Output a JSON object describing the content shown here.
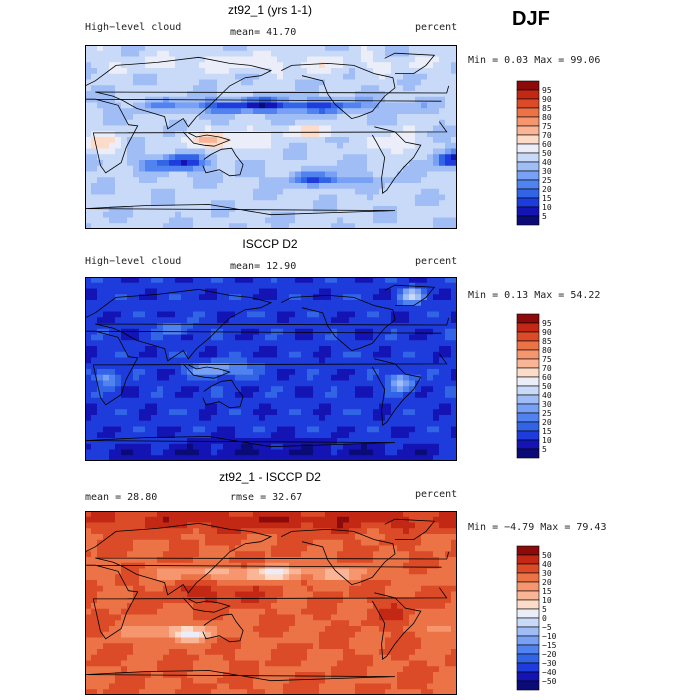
{
  "season": "DJF",
  "panels": [
    {
      "title": "zt92_1 (yrs 1-1)",
      "left_label": "High−level cloud",
      "center_label": "mean=  41.70",
      "right_label": "percent",
      "minmax_label": "Min =   0.03 Max =  99.06"
    },
    {
      "title": "ISCCP D2",
      "left_label": "High−level cloud",
      "center_label": "mean=  12.90",
      "right_label": "percent",
      "minmax_label": "Min =   0.13 Max =  54.22"
    },
    {
      "title": "zt92_1 - ISCCP D2",
      "left_label": "mean =  28.80",
      "center_label": "rmse =  32.67",
      "right_label": "percent",
      "minmax_label": "Min =  −4.79 Max =  79.43"
    }
  ],
  "chart_data": [
    {
      "type": "heatmap",
      "title": "zt92_1 (yrs 1-1)",
      "variable": "High-level cloud",
      "units": "percent",
      "mean": 41.7,
      "min": 0.03,
      "max": 99.06,
      "colorbar_levels": [
        5,
        10,
        15,
        20,
        25,
        30,
        40,
        50,
        60,
        70,
        75,
        80,
        85,
        90,
        95
      ],
      "colorbar_colors": [
        "#0b0b78",
        "#1414b4",
        "#1e3cdc",
        "#3264e6",
        "#5082f0",
        "#78a0f5",
        "#a0bef5",
        "#c8daf8",
        "#ebeef8",
        "#fcdcc8",
        "#fab496",
        "#f5966e",
        "#eb7346",
        "#dc4b28",
        "#c32814",
        "#8c0a0a"
      ]
    },
    {
      "type": "heatmap",
      "title": "ISCCP D2",
      "variable": "High-level cloud",
      "units": "percent",
      "mean": 12.9,
      "min": 0.13,
      "max": 54.22,
      "colorbar_levels": [
        5,
        10,
        15,
        20,
        25,
        30,
        40,
        50,
        60,
        70,
        75,
        80,
        85,
        90,
        95
      ],
      "colorbar_colors": [
        "#0b0b78",
        "#1414b4",
        "#1e3cdc",
        "#3264e6",
        "#5082f0",
        "#78a0f5",
        "#a0bef5",
        "#c8daf8",
        "#ebeef8",
        "#fcdcc8",
        "#fab496",
        "#f5966e",
        "#eb7346",
        "#dc4b28",
        "#c32814",
        "#8c0a0a"
      ]
    },
    {
      "type": "heatmap",
      "title": "zt92_1 - ISCCP D2",
      "units": "percent",
      "mean": 28.8,
      "rmse": 32.67,
      "min": -4.79,
      "max": 79.43,
      "colorbar_levels": [
        -50,
        -40,
        -30,
        -20,
        -15,
        -10,
        -5,
        0,
        5,
        10,
        15,
        20,
        30,
        40,
        50
      ],
      "colorbar_colors": [
        "#0b0b78",
        "#1414b4",
        "#1e3cdc",
        "#3264e6",
        "#5082f0",
        "#78a0f5",
        "#a0bef5",
        "#c8daf8",
        "#ebeef8",
        "#fcdcc8",
        "#fab496",
        "#f5966e",
        "#eb7346",
        "#dc4b28",
        "#c32814",
        "#8c0a0a"
      ]
    }
  ]
}
